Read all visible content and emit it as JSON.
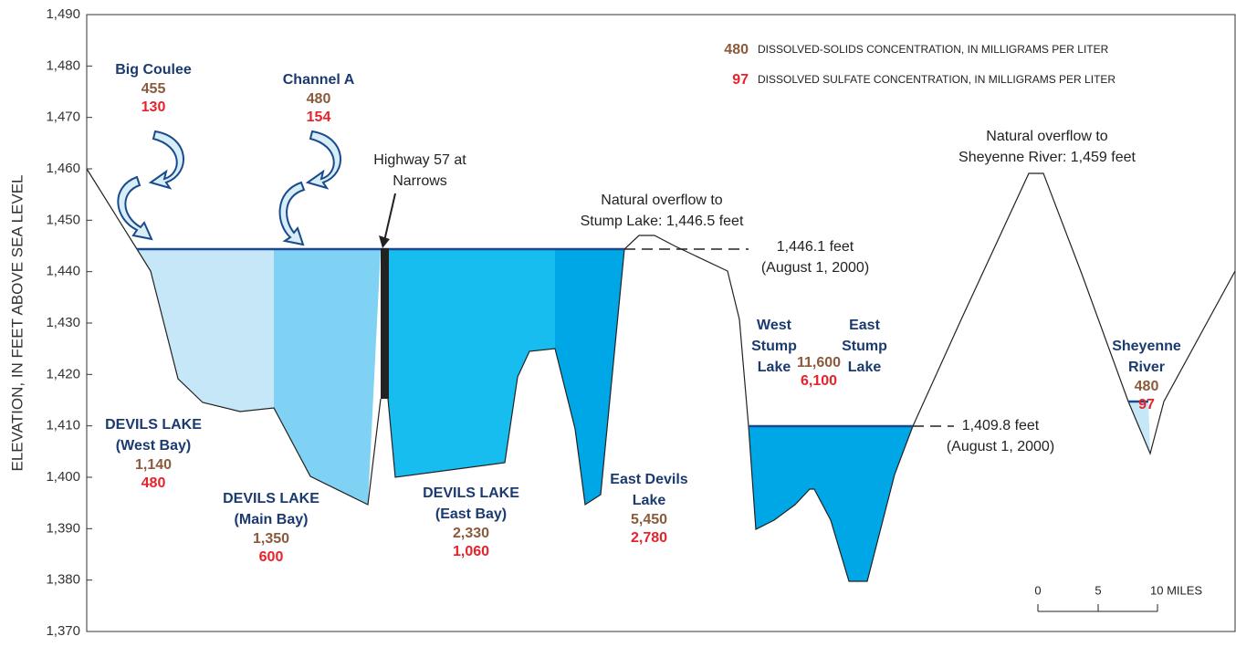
{
  "axis": {
    "label": "ELEVATION, IN FEET ABOVE SEA LEVEL",
    "ylim": [
      1370,
      1490
    ],
    "ticks": [
      {
        "value": 1370,
        "label": "1,370"
      },
      {
        "value": 1380,
        "label": "1,380"
      },
      {
        "value": 1390,
        "label": "1,390"
      },
      {
        "value": 1400,
        "label": "1,400"
      },
      {
        "value": 1410,
        "label": "1,410"
      },
      {
        "value": 1420,
        "label": "1,420"
      },
      {
        "value": 1430,
        "label": "1,430"
      },
      {
        "value": 1440,
        "label": "1,440"
      },
      {
        "value": 1450,
        "label": "1,450"
      },
      {
        "value": 1460,
        "label": "1,460"
      },
      {
        "value": 1470,
        "label": "1,470"
      },
      {
        "value": 1480,
        "label": "1,480"
      },
      {
        "value": 1490,
        "label": "1,490"
      }
    ]
  },
  "legend": [
    {
      "value": "480",
      "text": "DISSOLVED-SOLIDS CONCENTRATION, IN MILLIGRAMS PER LITER"
    },
    {
      "value": "97",
      "text": "DISSOLVED SULFATE CONCENTRATION, IN MILLIGRAMS PER LITER"
    }
  ],
  "sites": [
    {
      "name": [
        "Big Coulee"
      ],
      "solids": "455",
      "sulfate": "130"
    },
    {
      "name": [
        "Channel A"
      ],
      "solids": "480",
      "sulfate": "154"
    },
    {
      "name": [
        "DEVILS LAKE",
        "(West Bay)"
      ],
      "solids": "1,140",
      "sulfate": "480"
    },
    {
      "name": [
        "DEVILS LAKE",
        "(Main Bay)"
      ],
      "solids": "1,350",
      "sulfate": "600"
    },
    {
      "name": [
        "DEVILS LAKE",
        "(East Bay)"
      ],
      "solids": "2,330",
      "sulfate": "1,060"
    },
    {
      "name": [
        "East Devils",
        "Lake"
      ],
      "solids": "5,450",
      "sulfate": "2,780"
    },
    {
      "name": [
        "West",
        "Stump",
        "Lake"
      ]
    },
    {
      "name": [
        "East",
        "Stump",
        "Lake"
      ]
    },
    {
      "solids": "11,600",
      "sulfate": "6,100"
    },
    {
      "name": [
        "Sheyenne",
        "River"
      ],
      "solids": "480",
      "sulfate": "97"
    }
  ],
  "annotations": [
    [
      "Highway 57 at",
      "Narrows"
    ],
    [
      "Natural overflow to",
      "Stump Lake: 1,446.5 feet"
    ],
    [
      "1,446.1 feet",
      "(August 1, 2000)"
    ],
    [
      "Natural overflow to",
      "Sheyenne River: 1,459 feet"
    ],
    [
      "1,409.8 feet",
      "(August 1, 2000)"
    ]
  ],
  "scale": [
    "0",
    "5",
    "10 MILES"
  ]
}
